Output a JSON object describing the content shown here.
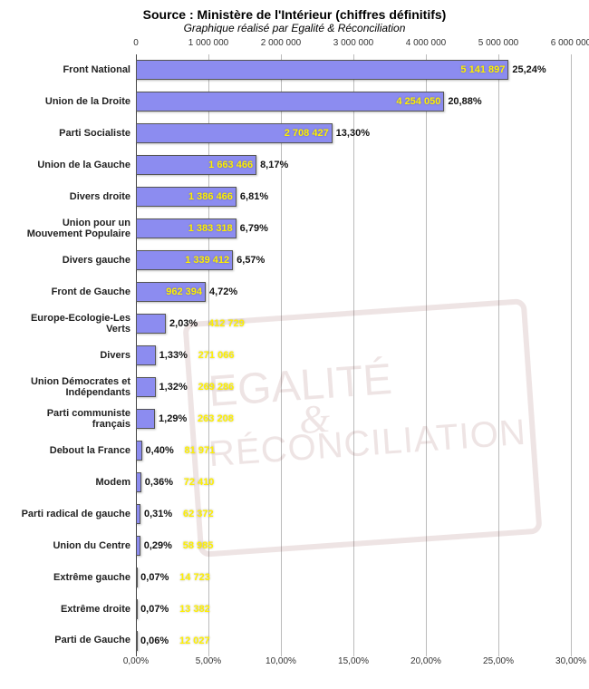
{
  "title": "Source : Ministère de l'Intérieur (chiffres définitifs)",
  "subtitle": "Graphique réalisé par Egalité & Réconciliation",
  "chart": {
    "type": "bar-horizontal-dual-axis",
    "bar_color": "#8c8cf0",
    "bar_border": "#555555",
    "value_color": "#fff000",
    "pct_color": "#111111",
    "grid_color": "#bbbbbb",
    "background": "#ffffff",
    "top_axis": {
      "min": 0,
      "max": 6000000,
      "step": 1000000,
      "labels": [
        "0",
        "1 000 000",
        "2 000 000",
        "3 000 000",
        "4 000 000",
        "5 000 000",
        "6 000 000"
      ]
    },
    "bottom_axis": {
      "min": 0,
      "max": 30,
      "step": 5,
      "labels": [
        "0,00%",
        "5,00%",
        "10,00%",
        "15,00%",
        "20,00%",
        "25,00%",
        "30,00%"
      ]
    },
    "rows": [
      {
        "label": "Front National",
        "value": 5141897,
        "value_str": "5 141 897",
        "pct": 25.24,
        "pct_str": "25,24%"
      },
      {
        "label": "Union de la Droite",
        "value": 4254050,
        "value_str": "4 254 050",
        "pct": 20.88,
        "pct_str": "20,88%"
      },
      {
        "label": "Parti Socialiste",
        "value": 2708427,
        "value_str": "2 708 427",
        "pct": 13.3,
        "pct_str": "13,30%"
      },
      {
        "label": "Union de la Gauche",
        "value": 1663466,
        "value_str": "1 663 466",
        "pct": 8.17,
        "pct_str": "8,17%"
      },
      {
        "label": "Divers droite",
        "value": 1386466,
        "value_str": "1 386 466",
        "pct": 6.81,
        "pct_str": "6,81%"
      },
      {
        "label": "Union pour un Mouvement Populaire",
        "value": 1383318,
        "value_str": "1 383 318",
        "pct": 6.79,
        "pct_str": "6,79%"
      },
      {
        "label": "Divers gauche",
        "value": 1339412,
        "value_str": "1 339 412",
        "pct": 6.57,
        "pct_str": "6,57%"
      },
      {
        "label": "Front de Gauche",
        "value": 962394,
        "value_str": "962 394",
        "pct": 4.72,
        "pct_str": "4,72%"
      },
      {
        "label": "Europe-Ecologie-Les Verts",
        "value": 412729,
        "value_str": "412 729",
        "pct": 2.03,
        "pct_str": "2,03%"
      },
      {
        "label": "Divers",
        "value": 271066,
        "value_str": "271 066",
        "pct": 1.33,
        "pct_str": "1,33%"
      },
      {
        "label": "Union Démocrates et Indépendants",
        "value": 269286,
        "value_str": "269 286",
        "pct": 1.32,
        "pct_str": "1,32%"
      },
      {
        "label": "Parti communiste français",
        "value": 263208,
        "value_str": "263 208",
        "pct": 1.29,
        "pct_str": "1,29%"
      },
      {
        "label": "Debout la France",
        "value": 81971,
        "value_str": "81 971",
        "pct": 0.4,
        "pct_str": "0,40%"
      },
      {
        "label": "Modem",
        "value": 72410,
        "value_str": "72 410",
        "pct": 0.36,
        "pct_str": "0,36%"
      },
      {
        "label": "Parti radical de gauche",
        "value": 62372,
        "value_str": "62 372",
        "pct": 0.31,
        "pct_str": "0,31%"
      },
      {
        "label": "Union du Centre",
        "value": 58985,
        "value_str": "58 985",
        "pct": 0.29,
        "pct_str": "0,29%"
      },
      {
        "label": "Extrême gauche",
        "value": 14723,
        "value_str": "14 723",
        "pct": 0.07,
        "pct_str": "0,07%"
      },
      {
        "label": "Extrême droite",
        "value": 13382,
        "value_str": "13 382",
        "pct": 0.07,
        "pct_str": "0,07%"
      },
      {
        "label": "Parti de Gauche",
        "value": 12027,
        "value_str": "12 027",
        "pct": 0.06,
        "pct_str": "0,06%"
      }
    ],
    "watermark": {
      "line1": "EGALITÉ",
      "amp": "&",
      "line2": "RÉCONCILIATION"
    }
  }
}
